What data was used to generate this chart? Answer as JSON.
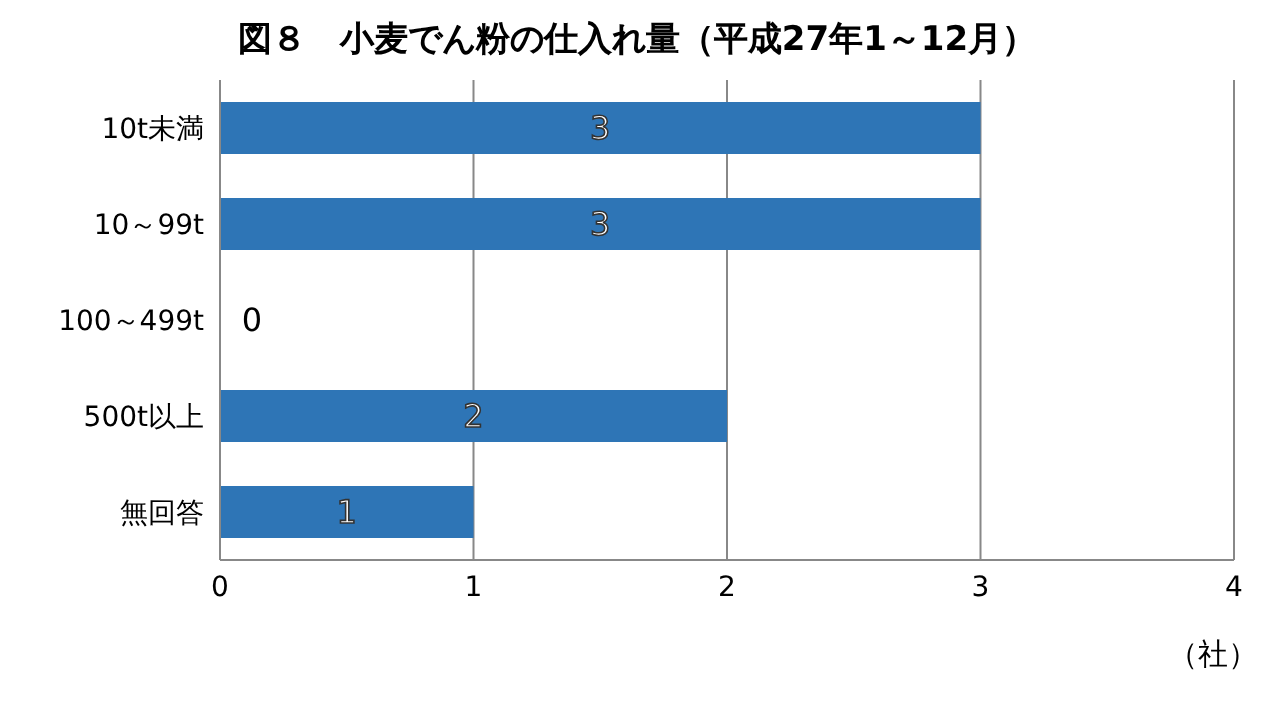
{
  "chart_data": {
    "type": "bar",
    "orientation": "horizontal",
    "title": "図８　小麦でん粉の仕入れ量（平成27年1～12月）",
    "xlabel": "（社）",
    "categories": [
      "10t未満",
      "10～99t",
      "100～499t",
      "500t以上",
      "無回答"
    ],
    "values": [
      3,
      3,
      0,
      2,
      1
    ],
    "color": "#2e75b6",
    "data_labels": true,
    "xlim": [
      0,
      4
    ],
    "xticks": [
      0,
      1,
      2,
      3,
      4
    ],
    "grid": "x"
  }
}
